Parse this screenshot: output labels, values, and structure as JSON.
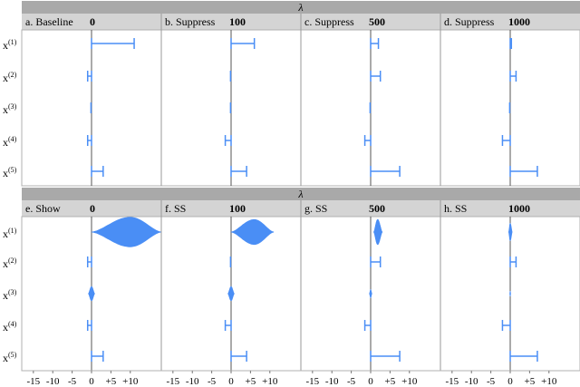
{
  "chart_data": {
    "type": "faceted-interval",
    "facet_header": "λ",
    "rows": [
      "x(1)",
      "x(2)",
      "x(3)",
      "x(4)",
      "x(5)"
    ],
    "row_labels": [
      {
        "base": "x",
        "sup": "(1)"
      },
      {
        "base": "x",
        "sup": "(2)"
      },
      {
        "base": "x",
        "sup": "(3)"
      },
      {
        "base": "x",
        "sup": "(4)"
      },
      {
        "base": "x",
        "sup": "(5)"
      }
    ],
    "x_ticks": [
      "-15",
      "-10",
      "-5",
      "0",
      "+5",
      "+10"
    ],
    "x_tick_values": [
      -15,
      -10,
      -5,
      0,
      5,
      10
    ],
    "xlim": [
      -18,
      18
    ],
    "color": "#4a8ef5",
    "bands": [
      {
        "header": "λ",
        "mark": "interval",
        "panels": [
          {
            "label": "a. Baseline",
            "lambda": "0",
            "intervals": [
              [
                0,
                11
              ],
              [
                -1,
                0
              ],
              [
                0,
                0
              ],
              [
                -1,
                0
              ],
              [
                0,
                3
              ]
            ]
          },
          {
            "label": "b. Suppress",
            "lambda": "100",
            "intervals": [
              [
                0,
                6
              ],
              [
                0,
                0
              ],
              [
                0,
                0
              ],
              [
                -1.5,
                0
              ],
              [
                0,
                4
              ]
            ]
          },
          {
            "label": "c. Suppress",
            "lambda": "500",
            "intervals": [
              [
                0,
                2
              ],
              [
                0,
                2.5
              ],
              [
                0,
                0
              ],
              [
                -1.5,
                0
              ],
              [
                0,
                7.5
              ]
            ]
          },
          {
            "label": "d. Suppress",
            "lambda": "1000",
            "intervals": [
              [
                0,
                0.3
              ],
              [
                0,
                1.5
              ],
              [
                0,
                0
              ],
              [
                -2,
                0
              ],
              [
                0,
                7
              ]
            ]
          }
        ]
      },
      {
        "header": "λ",
        "mark": "violin",
        "panels": [
          {
            "label": "e. Show",
            "lambda": "0",
            "shapes": [
              {
                "type": "violin",
                "min": 0,
                "max": 18,
                "mode": 10,
                "width": 0.95
              },
              {
                "type": "interval",
                "min": -1,
                "max": 0
              },
              {
                "type": "violin",
                "min": -0.8,
                "max": 0.8,
                "mode": 0,
                "width": 0.45
              },
              {
                "type": "interval",
                "min": -1,
                "max": 0
              },
              {
                "type": "interval",
                "min": 0,
                "max": 3
              }
            ]
          },
          {
            "label": "f. SS",
            "lambda": "100",
            "shapes": [
              {
                "type": "violin",
                "min": 0,
                "max": 11,
                "mode": 6,
                "width": 0.8
              },
              {
                "type": "interval",
                "min": 0,
                "max": 0
              },
              {
                "type": "violin",
                "min": -0.8,
                "max": 0.8,
                "mode": 0,
                "width": 0.45
              },
              {
                "type": "interval",
                "min": -1.5,
                "max": 0
              },
              {
                "type": "interval",
                "min": 0,
                "max": 4
              }
            ]
          },
          {
            "label": "g. SS",
            "lambda": "500",
            "shapes": [
              {
                "type": "violin",
                "min": 0.8,
                "max": 3,
                "mode": 1.8,
                "width": 0.8
              },
              {
                "type": "interval",
                "min": 0,
                "max": 2.5
              },
              {
                "type": "violin",
                "min": -0.3,
                "max": 0.3,
                "mode": 0,
                "width": 0.25
              },
              {
                "type": "interval",
                "min": -1.5,
                "max": 0
              },
              {
                "type": "interval",
                "min": 0,
                "max": 7.5
              }
            ]
          },
          {
            "label": "h. SS",
            "lambda": "1000",
            "shapes": [
              {
                "type": "violin",
                "min": -0.4,
                "max": 0.5,
                "mode": 0,
                "width": 0.55
              },
              {
                "type": "interval",
                "min": 0,
                "max": 1.5
              },
              {
                "type": "violin",
                "min": -0.1,
                "max": 0.1,
                "mode": 0,
                "width": 0.15
              },
              {
                "type": "interval",
                "min": -2,
                "max": 0
              },
              {
                "type": "interval",
                "min": 0,
                "max": 7
              }
            ]
          }
        ]
      }
    ]
  }
}
